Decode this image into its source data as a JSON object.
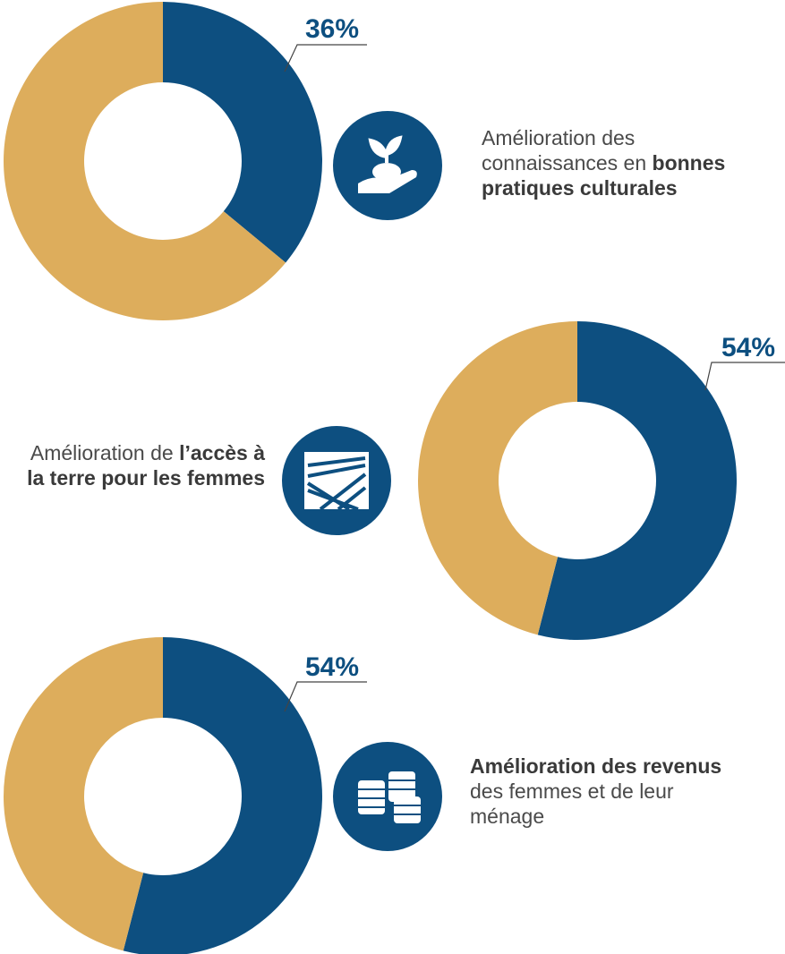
{
  "chart_data": [
    {
      "type": "donut",
      "values": [
        36,
        64
      ],
      "value_labels": [
        "36%",
        null
      ],
      "colors": [
        "#0d4f80",
        "#ddad5c"
      ],
      "label_parts": [
        {
          "text": "Amélioration des connaissances en ",
          "bold": false
        },
        {
          "text": "bonnes pratiques culturales",
          "bold": true
        }
      ]
    },
    {
      "type": "donut",
      "values": [
        54,
        46
      ],
      "value_labels": [
        "54%",
        null
      ],
      "colors": [
        "#0d4f80",
        "#ddad5c"
      ],
      "label_parts": [
        {
          "text": "Amélioration de ",
          "bold": false
        },
        {
          "text": "l’accès à la terre pour les femmes",
          "bold": true
        }
      ]
    },
    {
      "type": "donut",
      "values": [
        54,
        46
      ],
      "value_labels": [
        "54%",
        null
      ],
      "colors": [
        "#0d4f80",
        "#ddad5c"
      ],
      "label_parts": [
        {
          "text": "Amélioration des revenus",
          "bold": true
        },
        {
          "text": " des femmes et de leur ménage",
          "bold": false
        }
      ]
    }
  ]
}
